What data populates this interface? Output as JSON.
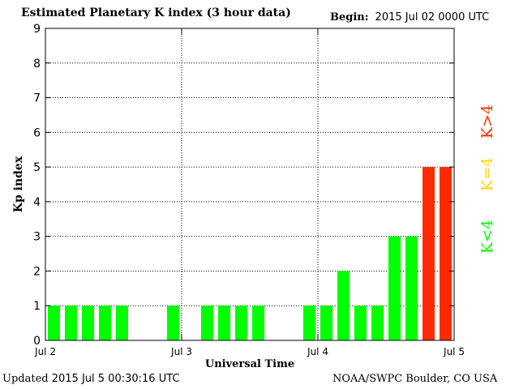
{
  "header": {
    "title": "Estimated Planetary K index (3 hour data)",
    "begin_label": "Begin:",
    "begin_value": "2015 Jul 02 0000 UTC"
  },
  "footer": {
    "updated_label": "Updated",
    "updated_value": "2015 Jul  5 00:30:16 UTC",
    "source": "NOAA/SWPC Boulder, CO USA"
  },
  "legend": {
    "high": "K>4",
    "mid": "K=4",
    "low": "K<4"
  },
  "colors": {
    "low": "#00ff00",
    "mid": "#ffd700",
    "high": "#ff2a00"
  },
  "chart_data": {
    "type": "bar",
    "ylabel": "Kp index",
    "xlabel": "Universal Time",
    "ylim": [
      0,
      9
    ],
    "yticks": [
      0,
      1,
      2,
      3,
      4,
      5,
      6,
      7,
      8,
      9
    ],
    "xticks": [
      "Jul 2",
      "Jul 3",
      "Jul 4",
      "Jul 5"
    ],
    "grid": true,
    "slots_per_day": 8,
    "values": [
      1,
      1,
      1,
      1,
      1,
      null,
      null,
      1,
      null,
      1,
      1,
      1,
      1,
      null,
      null,
      1,
      1,
      2,
      1,
      1,
      3,
      3,
      5,
      5
    ]
  }
}
